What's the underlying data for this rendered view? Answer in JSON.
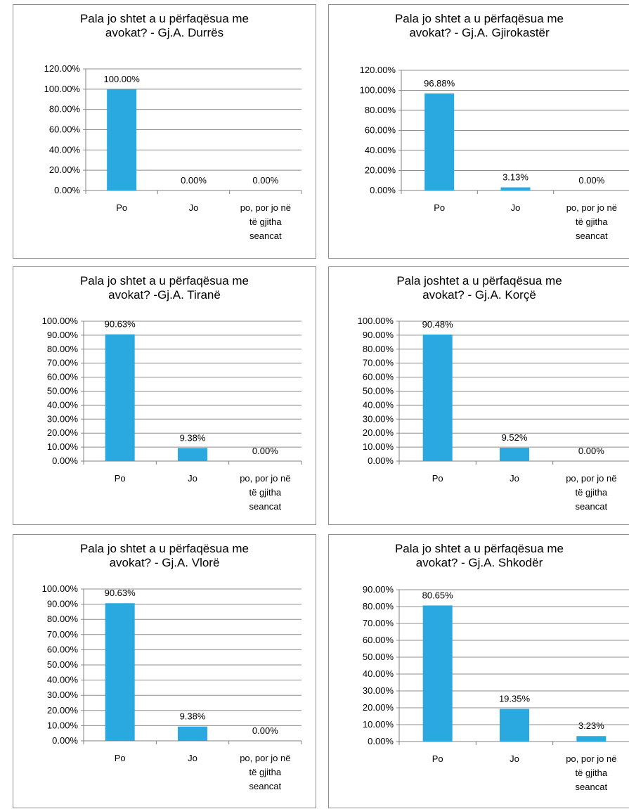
{
  "chart_data": [
    {
      "type": "bar",
      "title": "Pala jo shtet a u përfaqësua me\navokat? - Gj.A. Durrës",
      "categories": [
        "Po",
        "Jo",
        "po, por jo në\ntë gjitha\nseancat"
      ],
      "values": [
        100.0,
        0.0,
        0.0
      ],
      "data_labels": [
        "100.00%",
        "0.00%",
        "0.00%"
      ],
      "ylim": [
        0,
        120
      ],
      "ystep": 20,
      "grid": true,
      "legend": "none",
      "bar_color": "#29a9e0"
    },
    {
      "type": "bar",
      "title": "Pala jo shtet a u përfaqësua me\navokat? - Gj.A. Gjirokastër",
      "categories": [
        "Po",
        "Jo",
        "po, por jo në\ntë gjitha\nseancat"
      ],
      "values": [
        96.88,
        3.13,
        0.0
      ],
      "data_labels": [
        "96.88%",
        "3.13%",
        "0.00%"
      ],
      "ylim": [
        0,
        120
      ],
      "ystep": 20,
      "grid": true,
      "legend": "none",
      "bar_color": "#29a9e0"
    },
    {
      "type": "bar",
      "title": "Pala jo shtet a u përfaqësua me\navokat? -Gj.A. Tiranë",
      "categories": [
        "Po",
        "Jo",
        "po, por jo në\ntë gjitha\nseancat"
      ],
      "values": [
        90.63,
        9.38,
        0.0
      ],
      "data_labels": [
        "90.63%",
        "9.38%",
        "0.00%"
      ],
      "ylim": [
        0,
        100
      ],
      "ystep": 10,
      "grid": true,
      "legend": "none",
      "bar_color": "#29a9e0"
    },
    {
      "type": "bar",
      "title": "Pala joshtet a u përfaqësua me\navokat? - Gj.A. Korçë",
      "categories": [
        "Po",
        "Jo",
        "po, por jo në\ntë gjitha\nseancat"
      ],
      "values": [
        90.48,
        9.52,
        0.0
      ],
      "data_labels": [
        "90.48%",
        "9.52%",
        "0.00%"
      ],
      "ylim": [
        0,
        100
      ],
      "ystep": 10,
      "grid": true,
      "legend": "none",
      "bar_color": "#29a9e0"
    },
    {
      "type": "bar",
      "title": "Pala jo shtet a u përfaqësua me\navokat? - Gj.A. Vlorë",
      "categories": [
        "Po",
        "Jo",
        "po, por jo në\ntë gjitha\nseancat"
      ],
      "values": [
        90.63,
        9.38,
        0.0
      ],
      "data_labels": [
        "90.63%",
        "9.38%",
        "0.00%"
      ],
      "ylim": [
        0,
        100
      ],
      "ystep": 10,
      "grid": true,
      "legend": "none",
      "bar_color": "#29a9e0"
    },
    {
      "type": "bar",
      "title": "Pala jo shtet a u përfaqësua me\navokat? - Gj.A. Shkodër",
      "categories": [
        "Po",
        "Jo",
        "po, por jo në\ntë gjitha\nseancat"
      ],
      "values": [
        80.65,
        19.35,
        3.23
      ],
      "data_labels": [
        "80.65%",
        "19.35%",
        "3.23%"
      ],
      "ylim": [
        0,
        90
      ],
      "ystep": 10,
      "grid": true,
      "legend": "none",
      "bar_color": "#29a9e0"
    }
  ]
}
